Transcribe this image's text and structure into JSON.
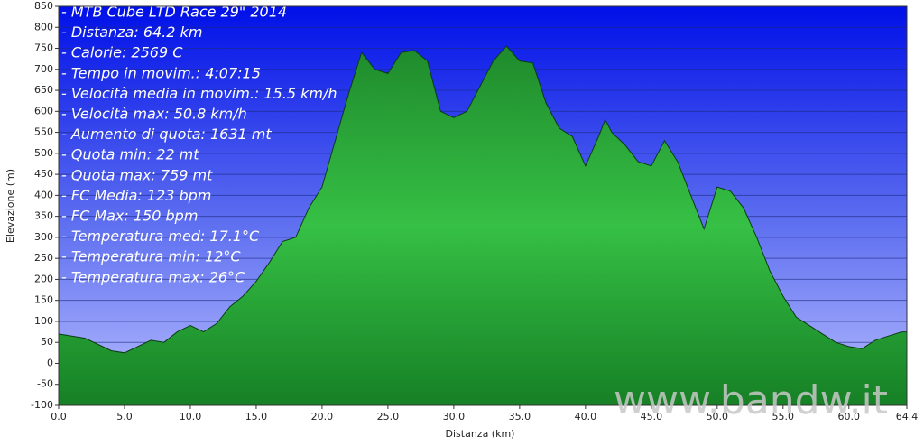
{
  "chart_data": {
    "type": "area",
    "annotations": [
      "- MTB Cube LTD Race 29\" 2014",
      "- Distanza: 64.2 km",
      "- Calorie: 2569 C",
      "- Tempo in movim.: 4:07:15",
      "- Velocità media in movim.: 15.5 km/h",
      "- Velocità max: 50.8 km/h",
      "- Aumento di quota: 1631 mt",
      "- Quota min: 22 mt",
      "- Quota max: 759 mt",
      "- FC Media: 123 bpm",
      "- FC Max: 150 bpm",
      "- Temperatura med: 17.1°C",
      "- Temperatura min: 12°C",
      "- Temperatura max: 26°C"
    ],
    "watermark": "www.bandw.it",
    "x_label": "Distanza  (km)",
    "y_label": "Elevazione (m)",
    "x": [
      0,
      1,
      2,
      3,
      4,
      5,
      6,
      7,
      8,
      9,
      10,
      11,
      12,
      13,
      14,
      15,
      16,
      17,
      18,
      19,
      20,
      21,
      22,
      23,
      24,
      25,
      26,
      27,
      28,
      29,
      30,
      31,
      32,
      33,
      34,
      35,
      36,
      37,
      38,
      39,
      40,
      41,
      41.5,
      42,
      43,
      44,
      45,
      46,
      47,
      48,
      49,
      50,
      51,
      52,
      53,
      54,
      55,
      56,
      57,
      58,
      59,
      60,
      61,
      62,
      63,
      64,
      64.4
    ],
    "values": [
      70,
      65,
      60,
      45,
      30,
      25,
      40,
      55,
      50,
      75,
      90,
      75,
      95,
      135,
      160,
      195,
      240,
      290,
      300,
      370,
      420,
      530,
      640,
      740,
      700,
      690,
      740,
      745,
      720,
      600,
      585,
      600,
      660,
      720,
      755,
      720,
      715,
      620,
      560,
      540,
      470,
      540,
      580,
      550,
      520,
      480,
      470,
      530,
      480,
      400,
      320,
      420,
      410,
      370,
      300,
      220,
      160,
      110,
      90,
      70,
      50,
      40,
      35,
      55,
      65,
      75,
      75
    ],
    "color": "#2fb13c",
    "xlim": [
      0,
      64.4
    ],
    "ylim": [
      -100,
      850
    ],
    "xticks": [
      {
        "value": 0,
        "label": "0.0"
      },
      {
        "value": 5,
        "label": "5.0"
      },
      {
        "value": 10,
        "label": "10.0"
      },
      {
        "value": 15,
        "label": "15.0"
      },
      {
        "value": 20,
        "label": "20.0"
      },
      {
        "value": 25,
        "label": "25.0"
      },
      {
        "value": 30,
        "label": "30.0"
      },
      {
        "value": 35,
        "label": "35.0"
      },
      {
        "value": 40,
        "label": "40.0"
      },
      {
        "value": 45,
        "label": "45.0"
      },
      {
        "value": 50,
        "label": "50.0"
      },
      {
        "value": 55,
        "label": "55.0"
      },
      {
        "value": 60,
        "label": "60.0"
      },
      64.4
    ],
    "yticks": [
      -100,
      -50,
      0,
      50,
      100,
      150,
      200,
      250,
      300,
      350,
      400,
      450,
      500,
      550,
      600,
      650,
      700,
      750,
      800,
      850
    ],
    "grid": true
  }
}
